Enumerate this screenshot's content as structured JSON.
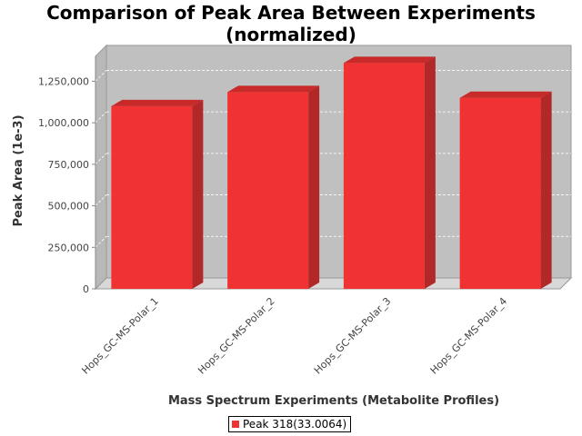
{
  "colors": {
    "bar_front": "#f03232",
    "bar_side": "#b22828",
    "bar_top": "#c82a2a",
    "plot_back": "#c0c0c0",
    "plot_floor": "#d8d8d8"
  },
  "chart_data": {
    "type": "bar",
    "title_lines": [
      "Comparison of Peak Area Between Experiments",
      "(normalized)"
    ],
    "xlabel": "Mass Spectrum Experiments (Metabolite Profiles)",
    "ylabel": "Peak Area (1e-3)",
    "categories": [
      "Hops_GC-MS-Polar_1",
      "Hops_GC-MS-Polar_2",
      "Hops_GC-MS-Polar_3",
      "Hops_GC-MS-Polar_4"
    ],
    "series": [
      {
        "name": "Peak 318(33.0064)",
        "values": [
          1100000,
          1185000,
          1360000,
          1150000
        ]
      }
    ],
    "yticks": [
      0,
      250000,
      500000,
      750000,
      1000000,
      1250000
    ],
    "ytick_labels": [
      "0",
      "250,000",
      "500,000",
      "750,000",
      "1,000,000",
      "1,250,000"
    ],
    "ylim": [
      0,
      1400000
    ],
    "grid": true,
    "legend_position": "bottom-center"
  }
}
